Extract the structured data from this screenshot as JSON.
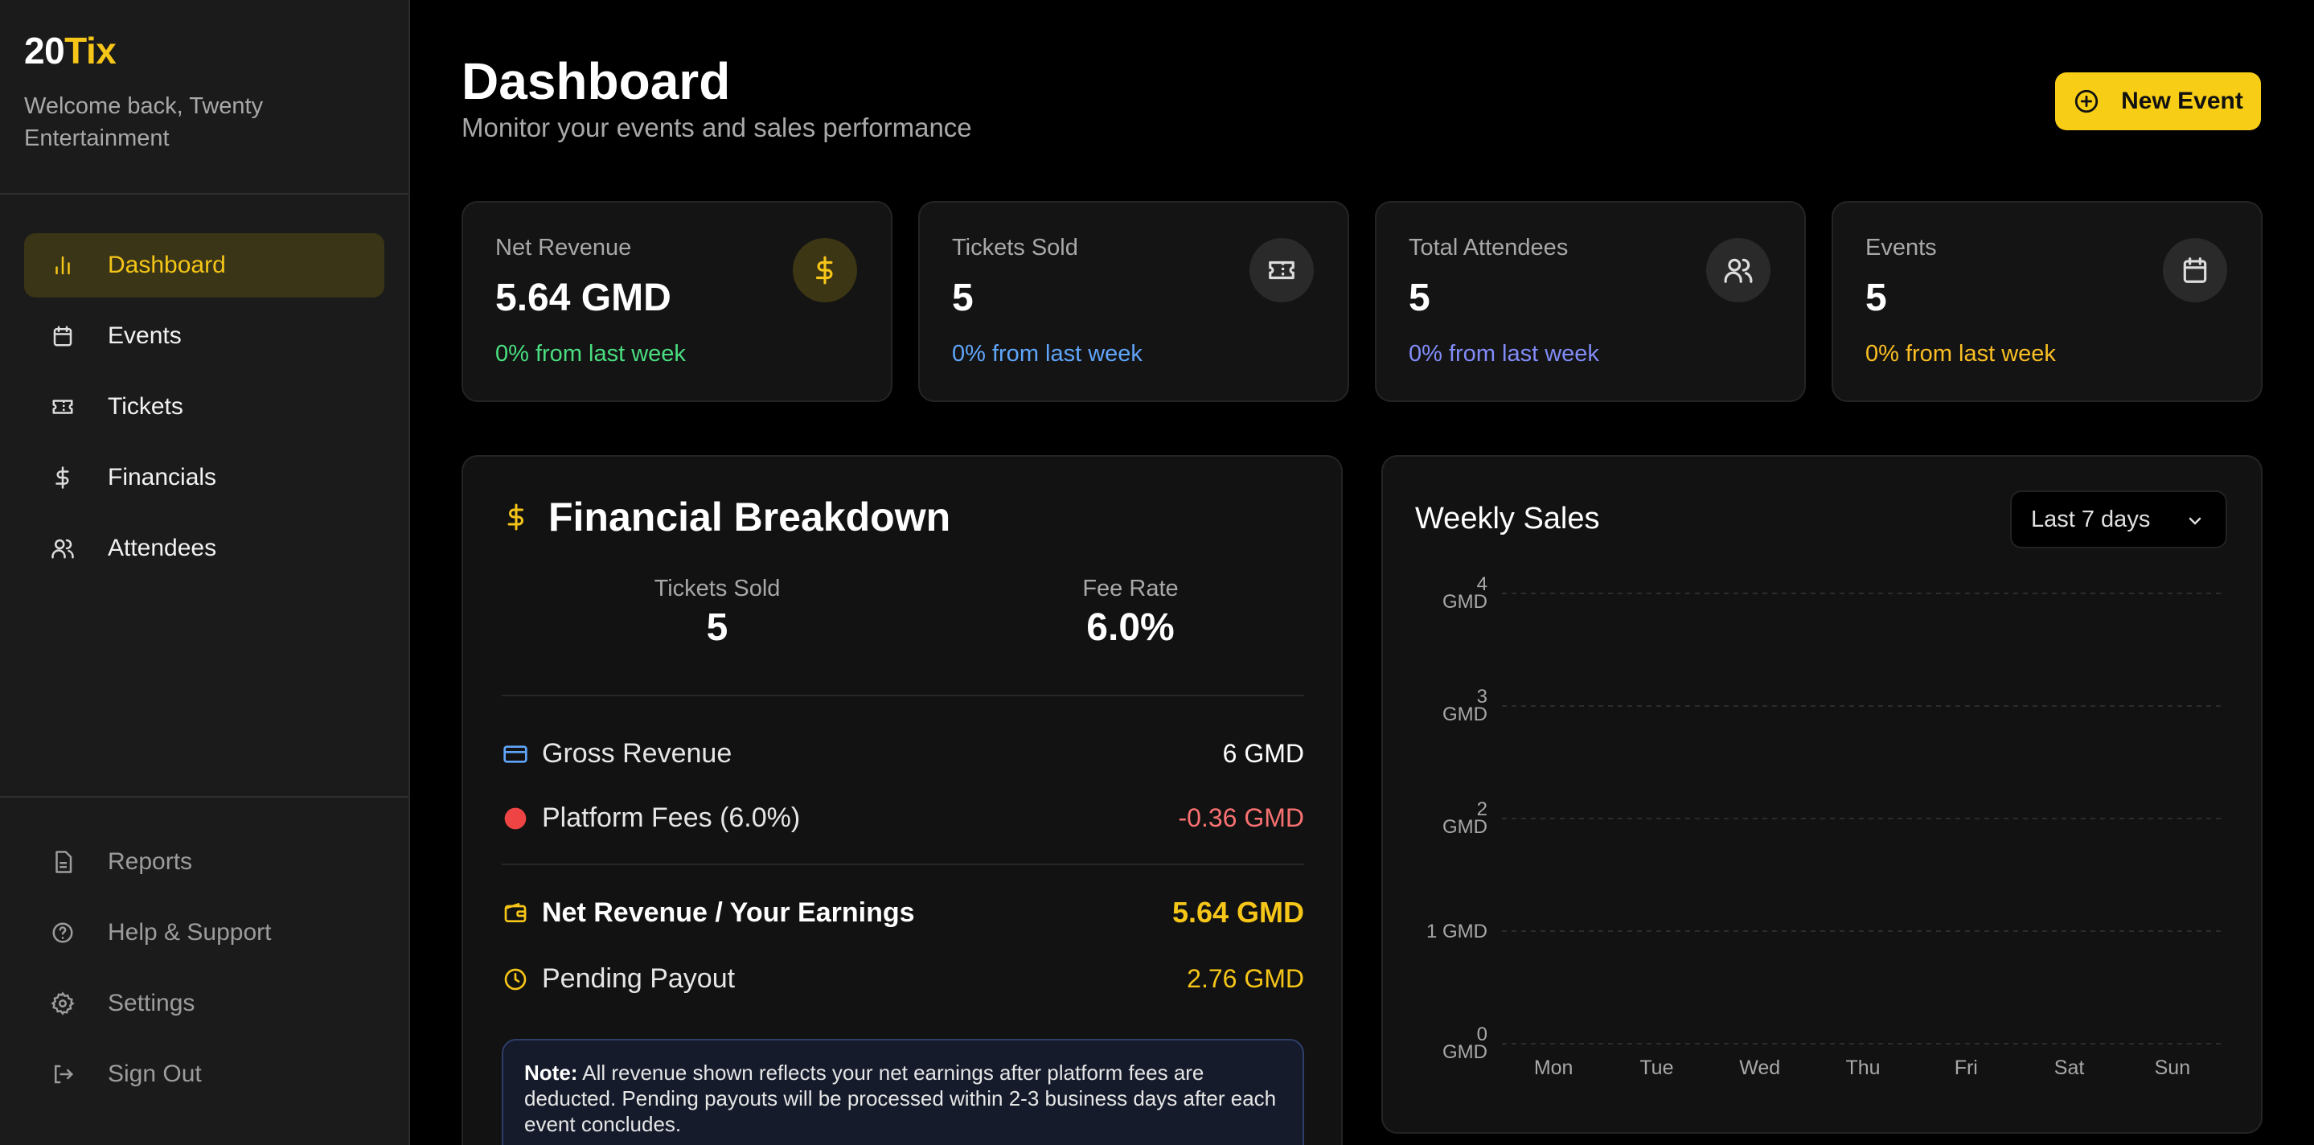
{
  "brand": {
    "logo_a": "20",
    "logo_b": "Tix",
    "welcome": "Welcome back, Twenty Entertainment"
  },
  "nav": {
    "items": [
      {
        "label": "Dashboard",
        "icon": "bar-chart-icon",
        "active": true
      },
      {
        "label": "Events",
        "icon": "calendar-icon"
      },
      {
        "label": "Tickets",
        "icon": "ticket-icon"
      },
      {
        "label": "Financials",
        "icon": "dollar-icon"
      },
      {
        "label": "Attendees",
        "icon": "users-icon"
      }
    ],
    "bottom": [
      {
        "label": "Reports",
        "icon": "file-icon"
      },
      {
        "label": "Help & Support",
        "icon": "help-circle-icon"
      },
      {
        "label": "Settings",
        "icon": "gear-icon"
      },
      {
        "label": "Sign Out",
        "icon": "sign-out-icon"
      }
    ]
  },
  "header": {
    "title": "Dashboard",
    "subtitle": "Monitor your events and sales performance",
    "new_event": "New Event"
  },
  "stats": [
    {
      "label": "Net Revenue",
      "value": "5.64 GMD",
      "change": "0% from last week",
      "color": "#4ade80",
      "icon": "dollar-icon"
    },
    {
      "label": "Tickets Sold",
      "value": "5",
      "change": "0% from last week",
      "color": "#60a5fa",
      "icon": "ticket-icon"
    },
    {
      "label": "Total Attendees",
      "value": "5",
      "change": "0% from last week",
      "color": "#818cf8",
      "icon": "users-icon"
    },
    {
      "label": "Events",
      "value": "5",
      "change": "0% from last week",
      "color": "#fbbf24",
      "icon": "calendar-icon"
    }
  ],
  "financial": {
    "title": "Financial Breakdown",
    "tickets_label": "Tickets Sold",
    "tickets_value": "5",
    "fee_label": "Fee Rate",
    "fee_value": "6.0%",
    "gross_label": "Gross Revenue",
    "gross_value": "6 GMD",
    "fees_label": "Platform Fees (6.0%)",
    "fees_value": "-0.36 GMD",
    "net_label": "Net Revenue / Your Earnings",
    "net_value": "5.64 GMD",
    "pending_label": "Pending Payout",
    "pending_value": "2.76 GMD",
    "note_bold": "Note:",
    "note_text": " All revenue shown reflects your net earnings after platform fees are deducted. Pending payouts will be processed within 2-3 business days after each event concludes."
  },
  "weekly": {
    "title": "Weekly Sales",
    "range": "Last 7 days"
  },
  "chart_data": {
    "type": "line",
    "title": "Weekly Sales",
    "categories": [
      "Mon",
      "Tue",
      "Wed",
      "Thu",
      "Fri",
      "Sat",
      "Sun"
    ],
    "y_ticks": [
      {
        "value": 4,
        "label": [
          "4",
          "GMD"
        ]
      },
      {
        "value": 3,
        "label": [
          "3",
          "GMD"
        ]
      },
      {
        "value": 2,
        "label": [
          "2",
          "GMD"
        ]
      },
      {
        "value": 1,
        "label": [
          "1 GMD"
        ]
      },
      {
        "value": 0,
        "label": [
          "0",
          "GMD"
        ]
      }
    ],
    "ylim": [
      0,
      4
    ],
    "grid": true,
    "series": []
  }
}
